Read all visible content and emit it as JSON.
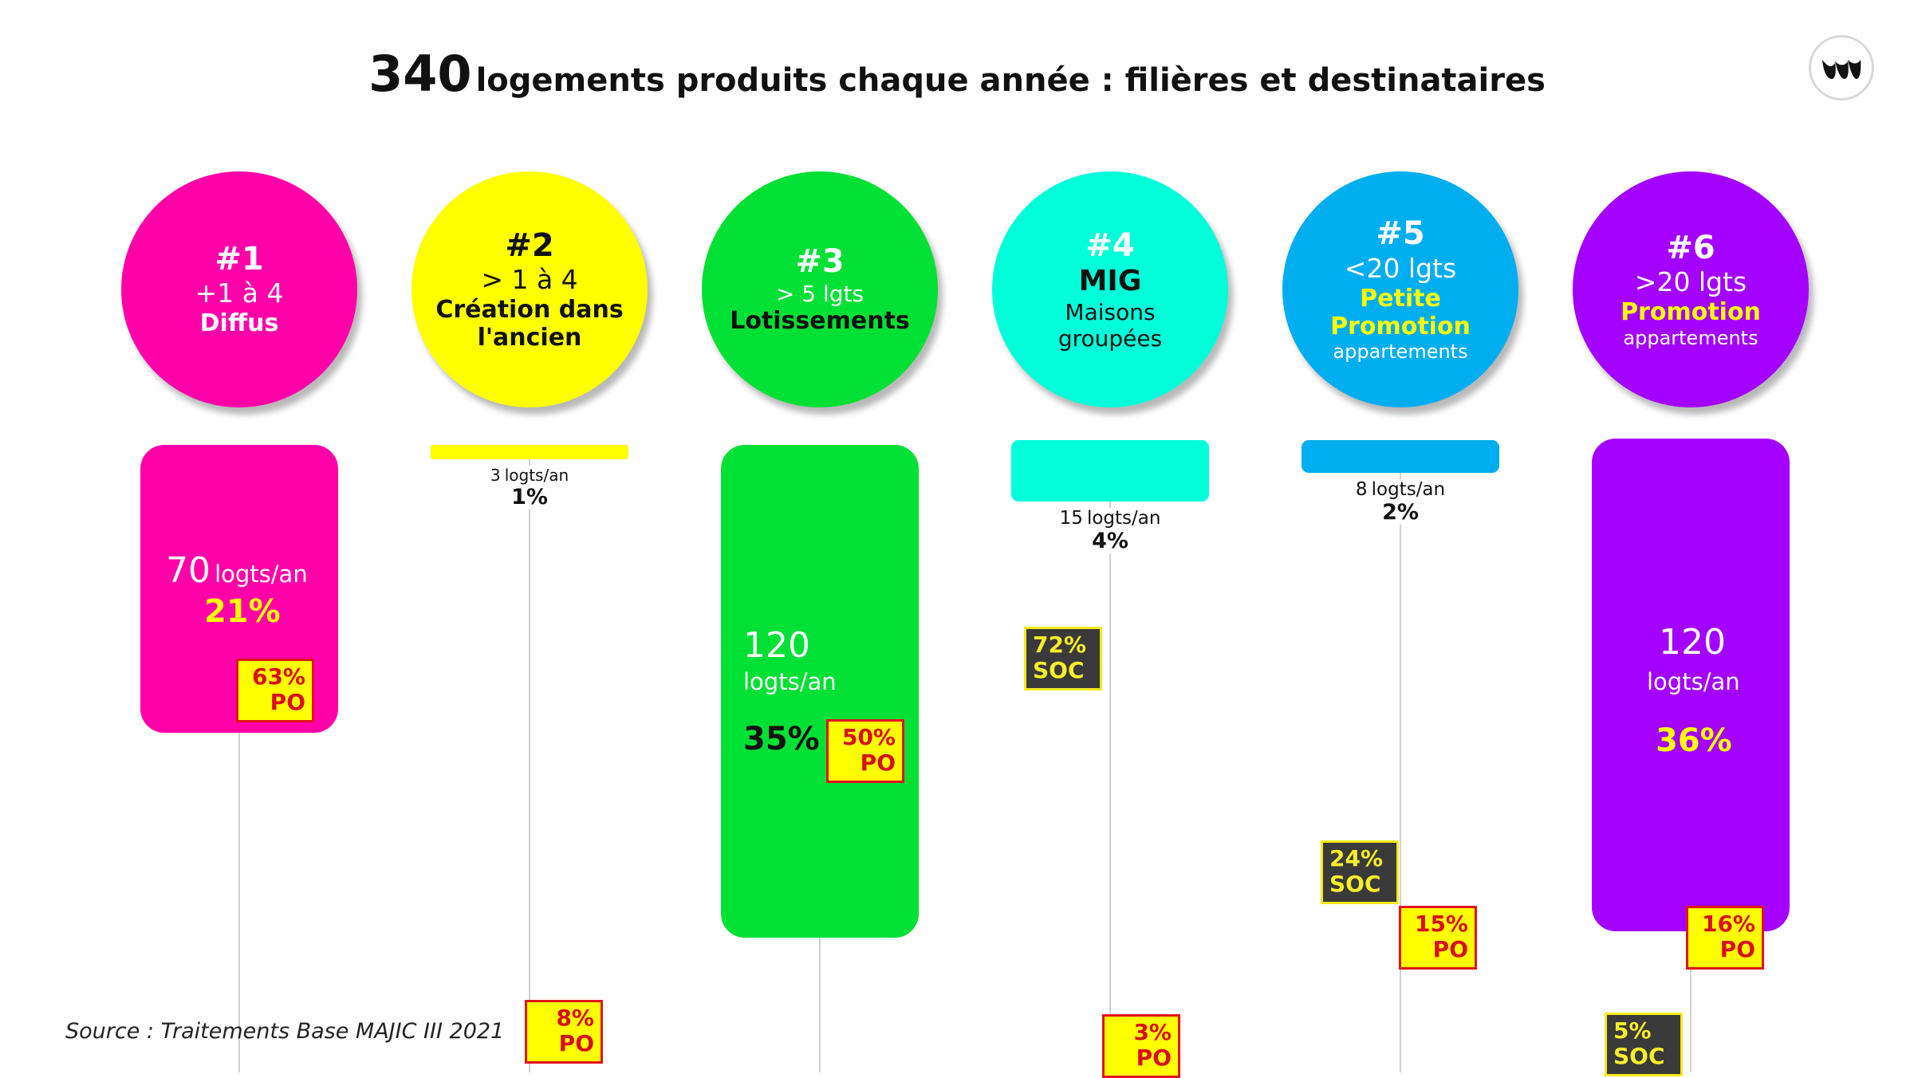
{
  "title": {
    "number": "340",
    "text": "logements produits chaque année : filières et destinataires"
  },
  "source": "Source : Traitements Base MAJIC III 2021",
  "logo": {
    "icon": "brand-logo-icon"
  },
  "colors": {
    "pink": "#ff00a8",
    "yellow": "#ffff00",
    "green": "#00e035",
    "cyan": "#00ffd9",
    "blue": "#00adef",
    "purple": "#a300ff"
  },
  "chart_data": {
    "type": "bar",
    "title": "340 logements produits chaque année : filières et destinataires",
    "total": 340,
    "categories": [
      {
        "label": "#1",
        "lines": [
          "+1 à 4",
          "Diffus"
        ],
        "color": "#ff00a8",
        "value": 70,
        "unit": "logts/an",
        "share": "21%",
        "shares": [
          {
            "value": "63%",
            "label": "PO"
          }
        ]
      },
      {
        "label": "#2",
        "lines": [
          "> 1 à 4",
          "Création dans",
          "l'ancien"
        ],
        "color": "#ffff00",
        "value": 3,
        "unit": "logts/an",
        "share": "1%",
        "shares": [
          {
            "value": "8%",
            "label": "PO"
          }
        ]
      },
      {
        "label": "#3",
        "lines": [
          "> 5 lgts",
          "Lotissements"
        ],
        "color": "#00e035",
        "value": 120,
        "unit": "logts/an",
        "share": "35%",
        "shares": [
          {
            "value": "50%",
            "label": "PO"
          }
        ]
      },
      {
        "label": "#4",
        "lines": [
          "MIG",
          "Maisons",
          "groupées"
        ],
        "color": "#00ffd9",
        "value": 15,
        "unit": "logts/an",
        "share": "4%",
        "shares": [
          {
            "value": "72%",
            "label": "SOC"
          },
          {
            "value": "3%",
            "label": "PO"
          }
        ]
      },
      {
        "label": "#5",
        "lines": [
          "<20 lgts",
          "Petite",
          "Promotion",
          "appartements"
        ],
        "color": "#00adef",
        "value": 8,
        "unit": "logts/an",
        "share": "2%",
        "shares": [
          {
            "value": "24%",
            "label": "SOC"
          },
          {
            "value": "15%",
            "label": "PO"
          }
        ]
      },
      {
        "label": "#6",
        "lines": [
          ">20 lgts",
          "Promotion",
          "appartements"
        ],
        "color": "#a300ff",
        "value": 120,
        "unit": "logts/an",
        "share": "36%",
        "shares": [
          {
            "value": "16%",
            "label": "PO"
          },
          {
            "value": "5%",
            "label": "SOC"
          }
        ]
      }
    ]
  }
}
